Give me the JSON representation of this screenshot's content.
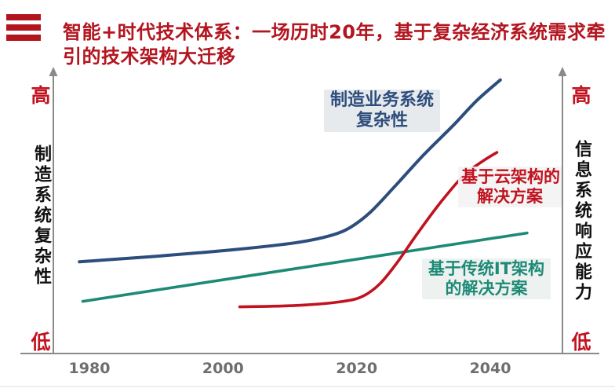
{
  "header": {
    "icon": "three-bars-icon",
    "accent_color": "#b3151f"
  },
  "chart_data": {
    "type": "line",
    "title_lines": [
      "智能+时代技术体系：一场历时20年，基于复杂经济系统需求牵",
      "引的技术架构大迁移"
    ],
    "x_ticks": [
      1980,
      2000,
      2020,
      2040
    ],
    "xlim": [
      1975,
      2051
    ],
    "ylim": [
      0,
      100
    ],
    "y_axis_left": {
      "title": "制造系统复杂性",
      "high": "高",
      "low": "低"
    },
    "y_axis_right": {
      "title": "信息系统响应能力",
      "high": "高",
      "low": "低"
    },
    "axis_color": "#8a8a8a",
    "axis_end_color": "#c1121f",
    "series": [
      {
        "label_lines": [
          "制造业务系统",
          "复杂性"
        ],
        "color": "#2d4d7c",
        "x": [
          1978.5,
          1990,
          2002,
          2011,
          2016,
          2019,
          2022,
          2025.5,
          2030,
          2034.5,
          2038,
          2041.5
        ],
        "y": [
          33,
          35,
          37.5,
          40,
          42.5,
          45.5,
          51,
          60,
          72,
          83,
          92,
          99.5
        ]
      },
      {
        "label_lines": [
          "基于云架构的",
          "解决方案"
        ],
        "color": "#c1121f",
        "x": [
          2002.5,
          2011,
          2018,
          2021,
          2023.5,
          2026,
          2029,
          2032.5,
          2036,
          2039,
          2041
        ],
        "y": [
          16.5,
          17,
          18.5,
          20.5,
          25,
          32.5,
          43,
          54.5,
          64.5,
          70,
          73
        ]
      },
      {
        "label_lines": [
          "基于传统IT架构",
          "的解决方案"
        ],
        "color": "#1d8a76",
        "x": [
          1979,
          2045.5
        ],
        "y": [
          18.5,
          43.5
        ]
      }
    ]
  }
}
